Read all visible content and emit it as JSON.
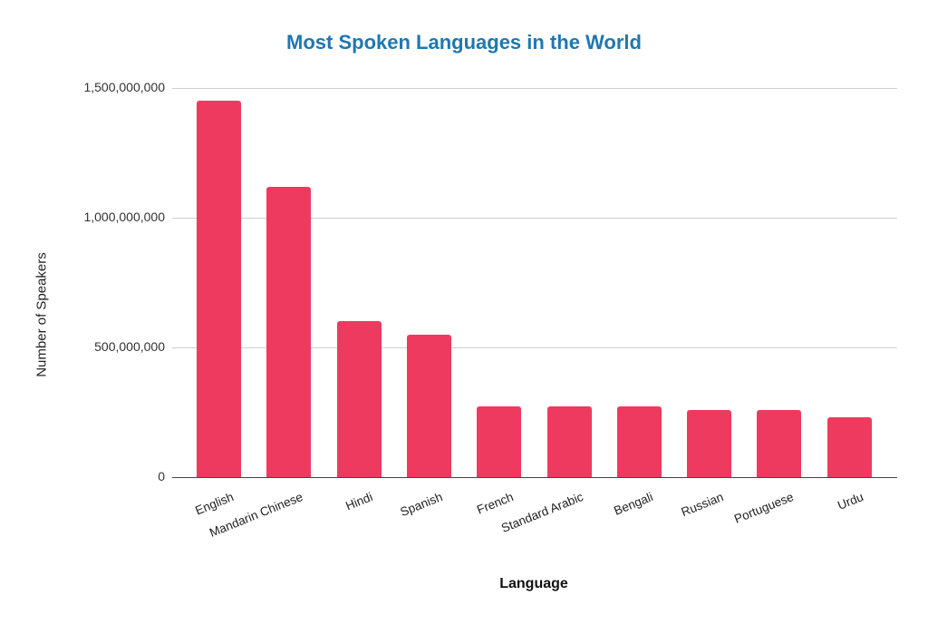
{
  "chart_data": {
    "type": "bar",
    "title": "Most Spoken Languages in the World",
    "xlabel": "Language",
    "ylabel": "Number of Speakers",
    "categories": [
      "English",
      "Mandarin Chinese",
      "Hindi",
      "Spanish",
      "French",
      "Standard Arabic",
      "Bengali",
      "Russian",
      "Portuguese",
      "Urdu"
    ],
    "values": [
      1452000000,
      1118000000,
      602000000,
      548000000,
      274000000,
      274000000,
      273000000,
      258000000,
      257000000,
      231000000
    ],
    "ylim": [
      0,
      1500000000
    ],
    "yticks": [
      0,
      500000000,
      1000000000,
      1500000000
    ],
    "ytick_labels": [
      "0",
      "500,000,000",
      "1,000,000,000",
      "1,500,000,000"
    ],
    "grid": true,
    "legend": null,
    "bar_color": "#ee3a5e",
    "title_color": "#2077b0"
  }
}
